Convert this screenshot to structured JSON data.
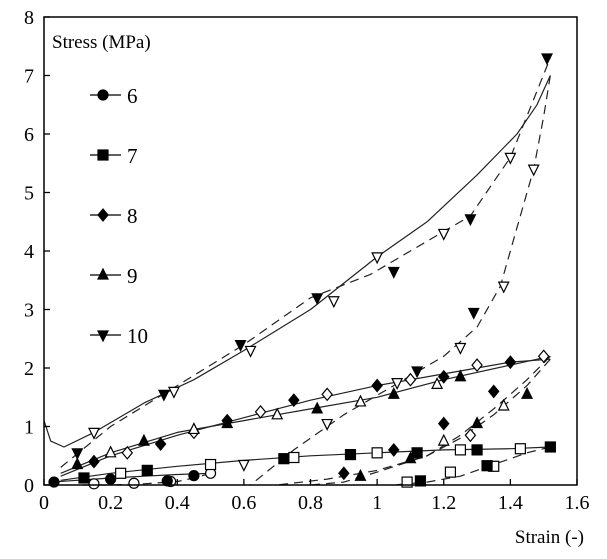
{
  "chart_data": {
    "type": "line",
    "title": "",
    "xlabel": "Strain (-)",
    "ylabel": "",
    "xlim": [
      0,
      1.6
    ],
    "ylim": [
      0,
      8
    ],
    "xticks": [
      "0",
      "0.2",
      "0.4",
      "0.6",
      "0.8",
      "1",
      "1.2",
      "1.4",
      "1.6"
    ],
    "yticks": [
      "0",
      "1",
      "2",
      "3",
      "4",
      "5",
      "6",
      "7",
      "8"
    ],
    "grid": false,
    "legend": {
      "title": "Stress (MPa)",
      "placement": "top-left",
      "entries": [
        "6",
        "7",
        "8",
        "9",
        "10"
      ]
    },
    "series": [
      {
        "name": "6",
        "marker": "circle",
        "loading": [
          [
            0.02,
            0.05
          ],
          [
            0.1,
            0.08
          ],
          [
            0.2,
            0.12
          ],
          [
            0.3,
            0.15
          ],
          [
            0.4,
            0.18
          ],
          [
            0.5,
            0.2
          ]
        ],
        "unloading": [
          [
            0.5,
            0.2
          ],
          [
            0.45,
            0.12
          ],
          [
            0.4,
            0.06
          ],
          [
            0.3,
            0.02
          ],
          [
            0.2,
            0.0
          ],
          [
            0.1,
            0.0
          ]
        ],
        "markers_filled": [
          [
            0.03,
            0.05
          ],
          [
            0.2,
            0.1
          ],
          [
            0.37,
            0.07
          ],
          [
            0.45,
            0.16
          ]
        ],
        "markers_open": [
          [
            0.15,
            0.02
          ],
          [
            0.27,
            0.03
          ],
          [
            0.38,
            0.06
          ],
          [
            0.5,
            0.2
          ]
        ]
      },
      {
        "name": "7",
        "marker": "square",
        "loading": [
          [
            0.05,
            0.08
          ],
          [
            0.2,
            0.2
          ],
          [
            0.4,
            0.32
          ],
          [
            0.6,
            0.42
          ],
          [
            0.8,
            0.5
          ],
          [
            1.0,
            0.55
          ],
          [
            1.2,
            0.6
          ],
          [
            1.4,
            0.62
          ],
          [
            1.52,
            0.65
          ]
        ],
        "unloading": [
          [
            1.52,
            0.65
          ],
          [
            1.45,
            0.55
          ],
          [
            1.35,
            0.35
          ],
          [
            1.25,
            0.15
          ],
          [
            1.15,
            0.05
          ],
          [
            1.05,
            0.0
          ]
        ],
        "markers_filled": [
          [
            0.12,
            0.12
          ],
          [
            0.31,
            0.25
          ],
          [
            0.72,
            0.45
          ],
          [
            0.92,
            0.52
          ],
          [
            1.12,
            0.55
          ],
          [
            1.3,
            0.6
          ],
          [
            1.52,
            0.65
          ],
          [
            1.33,
            0.33
          ],
          [
            1.13,
            0.07
          ]
        ],
        "markers_open": [
          [
            0.23,
            0.2
          ],
          [
            0.5,
            0.35
          ],
          [
            0.75,
            0.47
          ],
          [
            1.0,
            0.55
          ],
          [
            1.25,
            0.6
          ],
          [
            1.43,
            0.62
          ],
          [
            1.35,
            0.32
          ],
          [
            1.22,
            0.22
          ],
          [
            1.09,
            0.05
          ]
        ]
      },
      {
        "name": "8",
        "marker": "diamond",
        "loading": [
          [
            0.05,
            0.15
          ],
          [
            0.2,
            0.5
          ],
          [
            0.4,
            0.85
          ],
          [
            0.6,
            1.15
          ],
          [
            0.8,
            1.45
          ],
          [
            1.0,
            1.7
          ],
          [
            1.2,
            1.9
          ],
          [
            1.4,
            2.1
          ],
          [
            1.52,
            2.15
          ]
        ],
        "unloading": [
          [
            1.52,
            2.15
          ],
          [
            1.45,
            1.7
          ],
          [
            1.35,
            1.2
          ],
          [
            1.25,
            0.8
          ],
          [
            1.15,
            0.5
          ],
          [
            1.0,
            0.25
          ],
          [
            0.85,
            0.1
          ],
          [
            0.7,
            0.0
          ]
        ],
        "markers_filled": [
          [
            0.15,
            0.4
          ],
          [
            0.35,
            0.7
          ],
          [
            0.55,
            1.1
          ],
          [
            0.75,
            1.45
          ],
          [
            1.0,
            1.7
          ],
          [
            1.2,
            1.85
          ],
          [
            1.4,
            2.1
          ],
          [
            1.35,
            1.6
          ],
          [
            1.2,
            1.05
          ],
          [
            1.05,
            0.6
          ],
          [
            0.9,
            0.2
          ]
        ],
        "markers_open": [
          [
            0.25,
            0.55
          ],
          [
            0.45,
            0.9
          ],
          [
            0.65,
            1.25
          ],
          [
            0.85,
            1.55
          ],
          [
            1.1,
            1.8
          ],
          [
            1.3,
            2.05
          ],
          [
            1.5,
            2.2
          ],
          [
            1.28,
            0.85
          ]
        ]
      },
      {
        "name": "9",
        "marker": "triangle-up",
        "loading": [
          [
            0.05,
            0.2
          ],
          [
            0.2,
            0.55
          ],
          [
            0.4,
            0.9
          ],
          [
            0.6,
            1.1
          ],
          [
            0.8,
            1.3
          ],
          [
            1.0,
            1.5
          ],
          [
            1.2,
            1.8
          ],
          [
            1.4,
            2.05
          ],
          [
            1.52,
            2.2
          ]
        ],
        "unloading": [
          [
            1.52,
            2.2
          ],
          [
            1.45,
            1.8
          ],
          [
            1.35,
            1.3
          ],
          [
            1.25,
            0.85
          ],
          [
            1.15,
            0.5
          ],
          [
            1.0,
            0.22
          ],
          [
            0.9,
            0.05
          ],
          [
            0.8,
            0.0
          ]
        ],
        "markers_filled": [
          [
            0.1,
            0.35
          ],
          [
            0.3,
            0.75
          ],
          [
            0.55,
            1.05
          ],
          [
            0.82,
            1.3
          ],
          [
            1.05,
            1.55
          ],
          [
            1.25,
            1.85
          ],
          [
            1.45,
            1.55
          ],
          [
            1.3,
            1.05
          ],
          [
            1.1,
            0.45
          ],
          [
            0.95,
            0.15
          ]
        ],
        "markers_open": [
          [
            0.2,
            0.55
          ],
          [
            0.45,
            0.95
          ],
          [
            0.7,
            1.2
          ],
          [
            0.95,
            1.42
          ],
          [
            1.18,
            1.72
          ],
          [
            1.38,
            1.35
          ],
          [
            1.2,
            0.75
          ]
        ]
      },
      {
        "name": "10",
        "marker": "triangle-down",
        "loading": [
          [
            0.0,
            1.1
          ],
          [
            0.02,
            0.75
          ],
          [
            0.06,
            0.65
          ],
          [
            0.15,
            0.9
          ],
          [
            0.3,
            1.4
          ],
          [
            0.45,
            1.8
          ],
          [
            0.6,
            2.3
          ],
          [
            0.8,
            3.0
          ],
          [
            1.0,
            3.9
          ],
          [
            1.15,
            4.5
          ],
          [
            1.3,
            5.3
          ],
          [
            1.42,
            6.0
          ],
          [
            1.48,
            6.5
          ],
          [
            1.52,
            7.0
          ]
        ],
        "unloading": [
          [
            1.52,
            7.0
          ],
          [
            1.5,
            6.3
          ],
          [
            1.47,
            5.4
          ],
          [
            1.42,
            4.4
          ],
          [
            1.37,
            3.4
          ],
          [
            1.3,
            2.7
          ],
          [
            1.2,
            2.2
          ],
          [
            1.05,
            1.7
          ],
          [
            0.9,
            1.2
          ],
          [
            0.75,
            0.6
          ],
          [
            0.62,
            0.0
          ]
        ],
        "dashed_path": [
          [
            0.05,
            0.3
          ],
          [
            0.2,
            1.0
          ],
          [
            0.4,
            1.7
          ],
          [
            0.6,
            2.4
          ],
          [
            0.8,
            3.2
          ],
          [
            0.98,
            3.6
          ],
          [
            1.1,
            4.0
          ],
          [
            1.28,
            4.6
          ],
          [
            1.4,
            5.6
          ],
          [
            1.52,
            7.3
          ]
        ],
        "markers_filled": [
          [
            0.1,
            0.55
          ],
          [
            0.36,
            1.55
          ],
          [
            0.59,
            2.4
          ],
          [
            0.82,
            3.2
          ],
          [
            1.05,
            3.65
          ],
          [
            1.28,
            4.55
          ],
          [
            1.51,
            7.3
          ],
          [
            1.29,
            2.95
          ],
          [
            1.12,
            1.95
          ]
        ],
        "markers_open": [
          [
            0.15,
            0.9
          ],
          [
            0.39,
            1.6
          ],
          [
            0.62,
            2.3
          ],
          [
            0.87,
            3.15
          ],
          [
            1.0,
            3.9
          ],
          [
            1.2,
            4.3
          ],
          [
            1.4,
            5.6
          ],
          [
            1.47,
            5.4
          ],
          [
            1.38,
            3.4
          ],
          [
            1.25,
            2.35
          ],
          [
            1.06,
            1.75
          ],
          [
            0.85,
            1.05
          ],
          [
            0.6,
            0.35
          ]
        ]
      }
    ]
  }
}
